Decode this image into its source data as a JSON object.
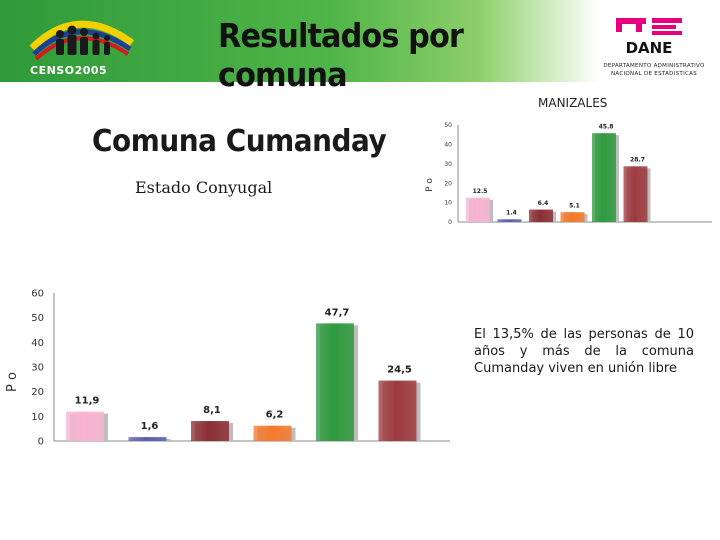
{
  "header": {
    "title": "Resultados por comuna",
    "censo_logo_text": "CENSO2005",
    "dane_logo_text": "DANE",
    "dane_caption_line1": "DEPARTAMENTO ADMINISTRATIVO",
    "dane_caption_line2": "NACIONAL DE ESTADISTICAS"
  },
  "content": {
    "city": "MANIZALES",
    "comuna": "Comuna Cumanday",
    "subtitle": "Estado Conyugal",
    "summary": "El 13,5% de las personas de 10 años y más de la comuna Cumanday viven en unión libre"
  },
  "colors": {
    "banner_green": "#3aa63f",
    "dane_magenta": "#e6007e",
    "bar_pink": "#f9b4d2",
    "bar_blue": "#5a5fb0",
    "bar_maroon": "#8b2f34",
    "bar_orange": "#f47a2c",
    "bar_green": "#2e9a3e",
    "bar_brown": "#9e3b3f"
  },
  "chart_data": [
    {
      "type": "bar",
      "ylabel": "P o",
      "ylim": [
        0,
        50
      ],
      "yticks": [
        "0",
        "10",
        "20",
        "30",
        "40",
        "50"
      ],
      "categories": [
        "",
        "",
        "",
        "",
        "",
        ""
      ],
      "values": [
        12.5,
        1.4,
        6.4,
        5.1,
        45.8,
        28.7
      ],
      "value_labels": [
        "12.5",
        "1.4",
        "6.4",
        "5.1",
        "45.8",
        "28.7"
      ],
      "bar_colors": [
        "#f9b4d2",
        "#5a5fb0",
        "#8b2f34",
        "#f47a2c",
        "#2e9a3e",
        "#9e3b3f"
      ]
    },
    {
      "type": "bar",
      "ylabel": "P o",
      "ylim": [
        0,
        60
      ],
      "yticks": [
        "0",
        "10",
        "20",
        "30",
        "40",
        "50",
        "60"
      ],
      "categories": [
        "",
        "",
        "",
        "",
        "",
        ""
      ],
      "values": [
        11.9,
        1.6,
        8.1,
        6.2,
        47.7,
        24.5
      ],
      "value_labels": [
        "11,9",
        "1,6",
        "8,1",
        "6,2",
        "47,7",
        "24,5"
      ],
      "bar_colors": [
        "#f9b4d2",
        "#5a5fb0",
        "#8b2f34",
        "#f47a2c",
        "#2e9a3e",
        "#9e3b3f"
      ]
    }
  ]
}
